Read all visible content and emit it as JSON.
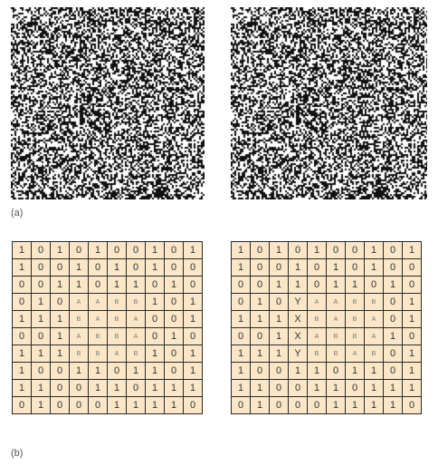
{
  "figure_a": {
    "label": "(a)",
    "noise_seed": 12345,
    "noise_colors": {
      "dark": "#111111",
      "light": "#ffffff"
    }
  },
  "figure_b": {
    "label": "(b)",
    "cell_color": "#fbe7c8",
    "border_color": "#2a2a2a",
    "left_grid": [
      [
        "1",
        "0",
        "1",
        "0",
        "1",
        "0",
        "0",
        "1",
        "0",
        "1"
      ],
      [
        "1",
        "0",
        "0",
        "1",
        "0",
        "1",
        "0",
        "1",
        "0",
        "0"
      ],
      [
        "0",
        "0",
        "1",
        "1",
        "0",
        "1",
        "1",
        "0",
        "1",
        "0"
      ],
      [
        "0",
        "1",
        "0",
        "A",
        "A",
        "B",
        "B",
        "1",
        "0",
        "1"
      ],
      [
        "1",
        "1",
        "1",
        "B",
        "A",
        "B",
        "A",
        "0",
        "0",
        "1"
      ],
      [
        "0",
        "0",
        "1",
        "A",
        "B",
        "B",
        "A",
        "0",
        "1",
        "0"
      ],
      [
        "1",
        "1",
        "1",
        "B",
        "B",
        "A",
        "B",
        "1",
        "0",
        "1"
      ],
      [
        "1",
        "0",
        "0",
        "1",
        "1",
        "0",
        "1",
        "1",
        "0",
        "1"
      ],
      [
        "1",
        "1",
        "0",
        "0",
        "1",
        "1",
        "0",
        "1",
        "1",
        "1"
      ],
      [
        "0",
        "1",
        "0",
        "0",
        "0",
        "1",
        "1",
        "1",
        "1",
        "0"
      ]
    ],
    "right_grid": [
      [
        "1",
        "0",
        "1",
        "0",
        "1",
        "0",
        "0",
        "1",
        "0",
        "1"
      ],
      [
        "1",
        "0",
        "0",
        "1",
        "0",
        "1",
        "0",
        "1",
        "0",
        "0"
      ],
      [
        "0",
        "0",
        "1",
        "1",
        "0",
        "1",
        "1",
        "0",
        "1",
        "0"
      ],
      [
        "0",
        "1",
        "0",
        "Y",
        "A",
        "A",
        "B",
        "B",
        "0",
        "1"
      ],
      [
        "1",
        "1",
        "1",
        "X",
        "B",
        "A",
        "B",
        "A",
        "0",
        "1"
      ],
      [
        "0",
        "0",
        "1",
        "X",
        "A",
        "B",
        "B",
        "A",
        "1",
        "0"
      ],
      [
        "1",
        "1",
        "1",
        "Y",
        "B",
        "B",
        "A",
        "B",
        "0",
        "1"
      ],
      [
        "1",
        "0",
        "0",
        "1",
        "1",
        "0",
        "1",
        "1",
        "0",
        "1"
      ],
      [
        "1",
        "1",
        "0",
        "0",
        "1",
        "1",
        "0",
        "1",
        "1",
        "1"
      ],
      [
        "0",
        "1",
        "0",
        "0",
        "0",
        "1",
        "1",
        "1",
        "1",
        "0"
      ]
    ]
  }
}
